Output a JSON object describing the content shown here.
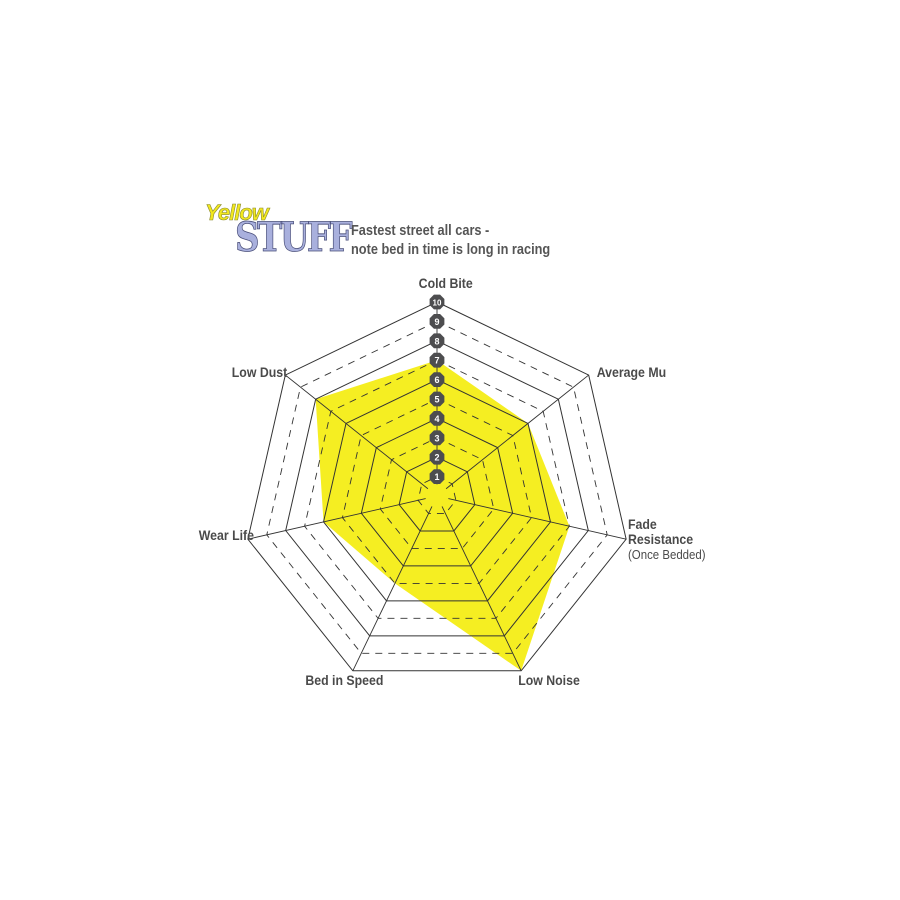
{
  "logo": {
    "line1": "Yellow",
    "line2": "STUFF"
  },
  "subtitle": [
    "Fastest street all cars -",
    "note bed in time is long in racing"
  ],
  "chart_data": {
    "type": "radar",
    "axes": [
      "Cold Bite",
      "Average Mu",
      "Fade Resistance",
      "Low Noise",
      "Bed in Speed",
      "Wear Life",
      "Low Dust"
    ],
    "axis_sublabels": {
      "Fade Resistance": "(Once Bedded)"
    },
    "values": [
      7,
      6,
      7,
      10,
      5,
      6,
      8
    ],
    "range": [
      0,
      10
    ],
    "tick_labels": [
      "1",
      "2",
      "3",
      "4",
      "5",
      "6",
      "7",
      "8",
      "9",
      "10"
    ],
    "fill_color": "#f5ee22",
    "grid_color": "#333333",
    "tick_badge_color": "#4d4d4f"
  }
}
